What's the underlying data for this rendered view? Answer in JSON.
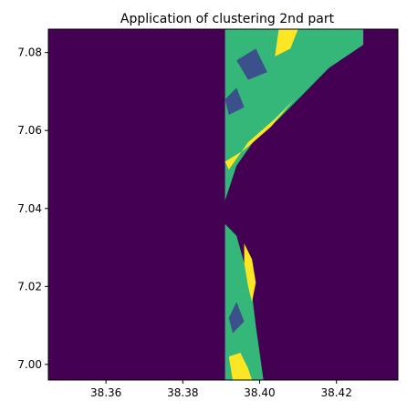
{
  "chart_data": {
    "type": "heatmap",
    "title": "Application of clustering 2nd part",
    "xlabel": "",
    "ylabel": "",
    "xlim": [
      38.345,
      38.436
    ],
    "ylim": [
      6.996,
      7.086
    ],
    "x_ticks": [
      "38.36",
      "38.38",
      "38.40",
      "38.42"
    ],
    "y_ticks": [
      "7.00",
      "7.02",
      "7.04",
      "7.06",
      "7.08"
    ],
    "grid": false,
    "colormap": {
      "0": "#440154",
      "1": "#3b518b",
      "2": "#35b779",
      "3": "#fde725"
    },
    "regions": [
      {
        "class": 0,
        "polygon": [
          [
            38.345,
            6.996
          ],
          [
            38.436,
            6.996
          ],
          [
            38.436,
            7.086
          ],
          [
            38.345,
            7.086
          ]
        ]
      },
      {
        "class": 2,
        "polygon": [
          [
            38.391,
            7.086
          ],
          [
            38.427,
            7.086
          ],
          [
            38.427,
            7.082
          ],
          [
            38.418,
            7.076
          ],
          [
            38.411,
            7.069
          ],
          [
            38.405,
            7.063
          ],
          [
            38.399,
            7.058
          ],
          [
            38.394,
            7.051
          ],
          [
            38.392,
            7.045
          ],
          [
            38.391,
            7.042
          ]
        ]
      },
      {
        "class": 2,
        "polygon": [
          [
            38.391,
            7.036
          ],
          [
            38.394,
            7.033
          ],
          [
            38.396,
            7.026
          ],
          [
            38.398,
            7.018
          ],
          [
            38.399,
            7.01
          ],
          [
            38.4,
            7.003
          ],
          [
            38.401,
            6.996
          ],
          [
            38.391,
            6.996
          ]
        ]
      },
      {
        "class": 3,
        "polygon": [
          [
            38.391,
            7.052
          ],
          [
            38.396,
            7.055
          ],
          [
            38.403,
            7.061
          ],
          [
            38.409,
            7.068
          ],
          [
            38.404,
            7.063
          ],
          [
            38.397,
            7.057
          ],
          [
            38.392,
            7.05
          ]
        ]
      },
      {
        "class": 3,
        "polygon": [
          [
            38.405,
            7.086
          ],
          [
            38.41,
            7.086
          ],
          [
            38.408,
            7.081
          ],
          [
            38.404,
            7.079
          ]
        ]
      },
      {
        "class": 3,
        "polygon": [
          [
            38.396,
            7.031
          ],
          [
            38.398,
            7.027
          ],
          [
            38.399,
            7.021
          ],
          [
            38.398,
            7.016
          ],
          [
            38.397,
            7.02
          ],
          [
            38.396,
            7.026
          ]
        ]
      },
      {
        "class": 3,
        "polygon": [
          [
            38.392,
            7.002
          ],
          [
            38.395,
            7.003
          ],
          [
            38.397,
            6.999
          ],
          [
            38.398,
            6.996
          ],
          [
            38.393,
            6.996
          ]
        ]
      },
      {
        "class": 1,
        "polygon": [
          [
            38.394,
            7.078
          ],
          [
            38.399,
            7.081
          ],
          [
            38.402,
            7.075
          ],
          [
            38.397,
            7.073
          ]
        ]
      },
      {
        "class": 1,
        "polygon": [
          [
            38.391,
            7.068
          ],
          [
            38.394,
            7.071
          ],
          [
            38.396,
            7.066
          ],
          [
            38.392,
            7.064
          ]
        ]
      },
      {
        "class": 1,
        "polygon": [
          [
            38.392,
            7.012
          ],
          [
            38.394,
            7.016
          ],
          [
            38.396,
            7.011
          ],
          [
            38.393,
            7.008
          ]
        ]
      }
    ]
  }
}
